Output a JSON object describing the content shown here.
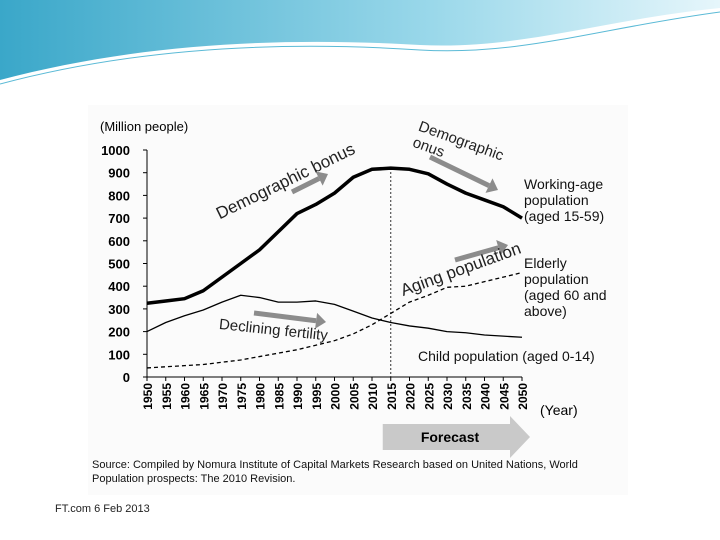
{
  "chart_data": {
    "type": "line",
    "y_label": "(Million people)",
    "x_label": "(Year)",
    "categories": [
      "1950",
      "1955",
      "1960",
      "1965",
      "1970",
      "1975",
      "1980",
      "1985",
      "1990",
      "1995",
      "2000",
      "2005",
      "2010",
      "2015",
      "2020",
      "2025",
      "2030",
      "2035",
      "2040",
      "2045",
      "2050"
    ],
    "series": [
      {
        "name": "Working-age population (aged 15-59)",
        "color": "#000000",
        "style": "thick",
        "values": [
          325,
          335,
          345,
          380,
          440,
          500,
          560,
          640,
          720,
          760,
          810,
          880,
          915,
          920,
          915,
          895,
          850,
          810,
          780,
          750,
          700
        ]
      },
      {
        "name": "Elderly population (aged 60 and above)",
        "color": "#000000",
        "style": "dashed",
        "values": [
          40,
          45,
          50,
          55,
          65,
          75,
          90,
          105,
          120,
          140,
          160,
          190,
          230,
          280,
          330,
          360,
          395,
          400,
          420,
          440,
          460
        ]
      },
      {
        "name": "Child population (aged 0-14)",
        "color": "#000000",
        "style": "thin",
        "values": [
          200,
          240,
          270,
          295,
          330,
          360,
          350,
          330,
          330,
          335,
          320,
          290,
          260,
          240,
          225,
          215,
          200,
          195,
          185,
          180,
          175
        ]
      }
    ],
    "ylim": [
      0,
      1000
    ],
    "yticks": [
      0,
      100,
      200,
      300,
      400,
      500,
      600,
      700,
      800,
      900,
      1000
    ],
    "annotations": [
      "Demographic bonus",
      "Demographic onus",
      "Aging population",
      "Declining fertility"
    ],
    "forecast": {
      "label": "Forecast",
      "start": "2015"
    },
    "source": "Source: Compiled by Nomura Institute of Capital Markets Research based on United Nations, World Population prospects: The 2010 Revision.",
    "footer": "FT.com 6 Feb 2013"
  }
}
